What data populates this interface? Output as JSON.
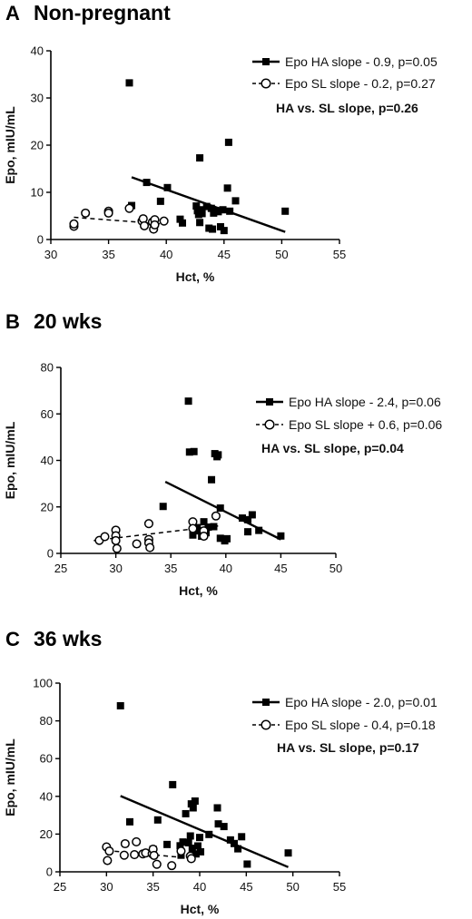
{
  "chart_data": [
    {
      "type": "scatter",
      "panel_letter": "A",
      "title": "Non-pregnant",
      "xlabel": "Hct, %",
      "ylabel": "Epo, mIU/mL",
      "xlim": [
        30,
        55
      ],
      "ylim": [
        0,
        40
      ],
      "xticks": [
        30,
        35,
        40,
        45,
        50,
        55
      ],
      "yticks": [
        0,
        10,
        20,
        30,
        40
      ],
      "legend_position": "top-right",
      "grid": false,
      "series": [
        {
          "name": "Epo HA slope - 0.9, p=0.05",
          "marker": "filled-square",
          "fit_line": "solid",
          "fit": [
            [
              37,
              13.2
            ],
            [
              50.3,
              1.6
            ]
          ],
          "points": [
            [
              36.8,
              33.2
            ],
            [
              37.0,
              7.2
            ],
            [
              38.3,
              12.1
            ],
            [
              39.5,
              8.1
            ],
            [
              40.1,
              11.0
            ],
            [
              41.2,
              4.3
            ],
            [
              41.4,
              3.5
            ],
            [
              42.6,
              7.1
            ],
            [
              42.7,
              6.1
            ],
            [
              42.8,
              5.3
            ],
            [
              42.9,
              3.6
            ],
            [
              42.9,
              17.3
            ],
            [
              43.0,
              6.3
            ],
            [
              43.1,
              5.5
            ],
            [
              43.5,
              7.0
            ],
            [
              43.7,
              2.4
            ],
            [
              43.9,
              6.6
            ],
            [
              44.0,
              2.2
            ],
            [
              44.1,
              5.6
            ],
            [
              44.3,
              6.1
            ],
            [
              44.5,
              5.9
            ],
            [
              44.7,
              2.7
            ],
            [
              44.9,
              6.3
            ],
            [
              45.0,
              1.9
            ],
            [
              45.3,
              10.9
            ],
            [
              45.4,
              20.6
            ],
            [
              45.5,
              6.0
            ],
            [
              46.0,
              8.2
            ],
            [
              50.3,
              6.0
            ]
          ]
        },
        {
          "name": "Epo SL slope - 0.2, p=0.27",
          "marker": "open-circle",
          "fit_line": "dashed",
          "fit": [
            [
              32,
              4.7
            ],
            [
              39.7,
              3.3
            ]
          ],
          "points": [
            [
              32.0,
              2.8
            ],
            [
              32.0,
              3.3
            ],
            [
              33.0,
              5.6
            ],
            [
              35.0,
              6.0
            ],
            [
              35.0,
              5.6
            ],
            [
              36.8,
              6.6
            ],
            [
              37.9,
              3.9
            ],
            [
              38.0,
              4.4
            ],
            [
              38.1,
              2.9
            ],
            [
              38.8,
              3.7
            ],
            [
              38.9,
              2.2
            ],
            [
              39.0,
              4.2
            ],
            [
              39.0,
              3.1
            ],
            [
              39.8,
              3.9
            ]
          ]
        }
      ],
      "annotation": "HA vs. SL slope, p=0.26"
    },
    {
      "type": "scatter",
      "panel_letter": "B",
      "title": "20 wks",
      "xlabel": "Hct, %",
      "ylabel": "Epo, mIU/mL",
      "xlim": [
        25,
        50
      ],
      "ylim": [
        0,
        80
      ],
      "xticks": [
        25,
        30,
        35,
        40,
        45,
        50
      ],
      "yticks": [
        0,
        20,
        40,
        60,
        80
      ],
      "legend_position": "top-right",
      "grid": false,
      "series": [
        {
          "name": "Epo HA slope - 2.4, p=0.06",
          "marker": "filled-square",
          "fit_line": "solid",
          "fit": [
            [
              34.5,
              30.8
            ],
            [
              45,
              6.0
            ]
          ],
          "points": [
            [
              34.3,
              20.2
            ],
            [
              36.6,
              65.5
            ],
            [
              36.7,
              43.6
            ],
            [
              37.0,
              7.9
            ],
            [
              37.1,
              43.8
            ],
            [
              37.3,
              9.7
            ],
            [
              37.4,
              11.1
            ],
            [
              37.8,
              7.4
            ],
            [
              38.0,
              13.6
            ],
            [
              38.2,
              8.9
            ],
            [
              38.4,
              11.3
            ],
            [
              38.7,
              31.7
            ],
            [
              38.9,
              11.5
            ],
            [
              39.0,
              42.9
            ],
            [
              39.2,
              41.6
            ],
            [
              39.3,
              42.4
            ],
            [
              39.5,
              19.5
            ],
            [
              39.5,
              6.5
            ],
            [
              39.9,
              5.4
            ],
            [
              40.1,
              6.3
            ],
            [
              41.5,
              15.2
            ],
            [
              42.0,
              14.5
            ],
            [
              42.0,
              9.3
            ],
            [
              42.4,
              16.6
            ],
            [
              43.0,
              9.9
            ],
            [
              45.0,
              7.5
            ]
          ]
        },
        {
          "name": "Epo SL slope + 0.6, p=0.06",
          "marker": "open-circle",
          "fit_line": "dashed",
          "fit": [
            [
              28,
              5.5
            ],
            [
              39.3,
              11.8
            ]
          ],
          "points": [
            [
              28.5,
              5.6
            ],
            [
              29.0,
              7.2
            ],
            [
              30.0,
              10.0
            ],
            [
              30.0,
              7.6
            ],
            [
              30.0,
              5.5
            ],
            [
              30.1,
              2.1
            ],
            [
              31.9,
              4.1
            ],
            [
              33.0,
              12.8
            ],
            [
              33.0,
              6.0
            ],
            [
              33.0,
              4.5
            ],
            [
              33.1,
              2.5
            ],
            [
              37.0,
              13.6
            ],
            [
              37.0,
              10.7
            ],
            [
              38.0,
              9.7
            ],
            [
              38.0,
              7.4
            ],
            [
              39.1,
              16.1
            ]
          ]
        }
      ],
      "annotation": "HA vs. SL slope, p=0.04"
    },
    {
      "type": "scatter",
      "panel_letter": "C",
      "title": "36 wks",
      "xlabel": "Hct, %",
      "ylabel": "Epo, mIU/mL",
      "xlim": [
        25,
        55
      ],
      "ylim": [
        0,
        100
      ],
      "xticks": [
        25,
        30,
        35,
        40,
        45,
        50,
        55
      ],
      "yticks": [
        0,
        20,
        40,
        60,
        80,
        100
      ],
      "legend_position": "top-right",
      "grid": false,
      "series": [
        {
          "name": "Epo HA slope - 2.0, p=0.01",
          "marker": "filled-square",
          "fit_line": "solid",
          "fit": [
            [
              31.5,
              40.2
            ],
            [
              49.5,
              2.5
            ]
          ],
          "points": [
            [
              31.5,
              88.0
            ],
            [
              32.5,
              26.5
            ],
            [
              35.0,
              12.0
            ],
            [
              35.5,
              27.5
            ],
            [
              36.5,
              14.5
            ],
            [
              37.1,
              46.2
            ],
            [
              37.9,
              13.8
            ],
            [
              38.0,
              8.8
            ],
            [
              38.2,
              15.8
            ],
            [
              38.5,
              30.8
            ],
            [
              38.8,
              15.4
            ],
            [
              39.0,
              19.0
            ],
            [
              39.1,
              36.0
            ],
            [
              39.2,
              12.5
            ],
            [
              39.3,
              33.9
            ],
            [
              39.5,
              37.5
            ],
            [
              39.6,
              9.5
            ],
            [
              39.8,
              13.7
            ],
            [
              40.0,
              18.2
            ],
            [
              40.1,
              10.6
            ],
            [
              41.0,
              19.8
            ],
            [
              41.9,
              33.9
            ],
            [
              42.0,
              25.4
            ],
            [
              42.6,
              24.0
            ],
            [
              43.3,
              16.9
            ],
            [
              43.7,
              15.0
            ],
            [
              44.1,
              12.2
            ],
            [
              44.5,
              18.6
            ],
            [
              45.1,
              4.1
            ],
            [
              49.5,
              10.0
            ]
          ]
        },
        {
          "name": "Epo SL slope - 0.4, p=0.18",
          "marker": "open-circle",
          "fit_line": "dashed",
          "fit": [
            [
              30,
              11.3
            ],
            [
              39.5,
              7.0
            ]
          ],
          "points": [
            [
              30.0,
              13.2
            ],
            [
              30.1,
              6.0
            ],
            [
              30.3,
              11.0
            ],
            [
              31.9,
              8.8
            ],
            [
              32.0,
              14.9
            ],
            [
              33.0,
              9.1
            ],
            [
              33.2,
              15.9
            ],
            [
              33.9,
              9.5
            ],
            [
              34.2,
              10.0
            ],
            [
              34.9,
              9.5
            ],
            [
              35.0,
              12.0
            ],
            [
              35.1,
              8.7
            ],
            [
              35.4,
              4.0
            ],
            [
              37.0,
              3.3
            ],
            [
              38.0,
              11.0
            ],
            [
              39.0,
              8.3
            ],
            [
              39.1,
              7.0
            ]
          ]
        }
      ],
      "annotation": "HA vs. SL slope, p=0.17"
    }
  ]
}
